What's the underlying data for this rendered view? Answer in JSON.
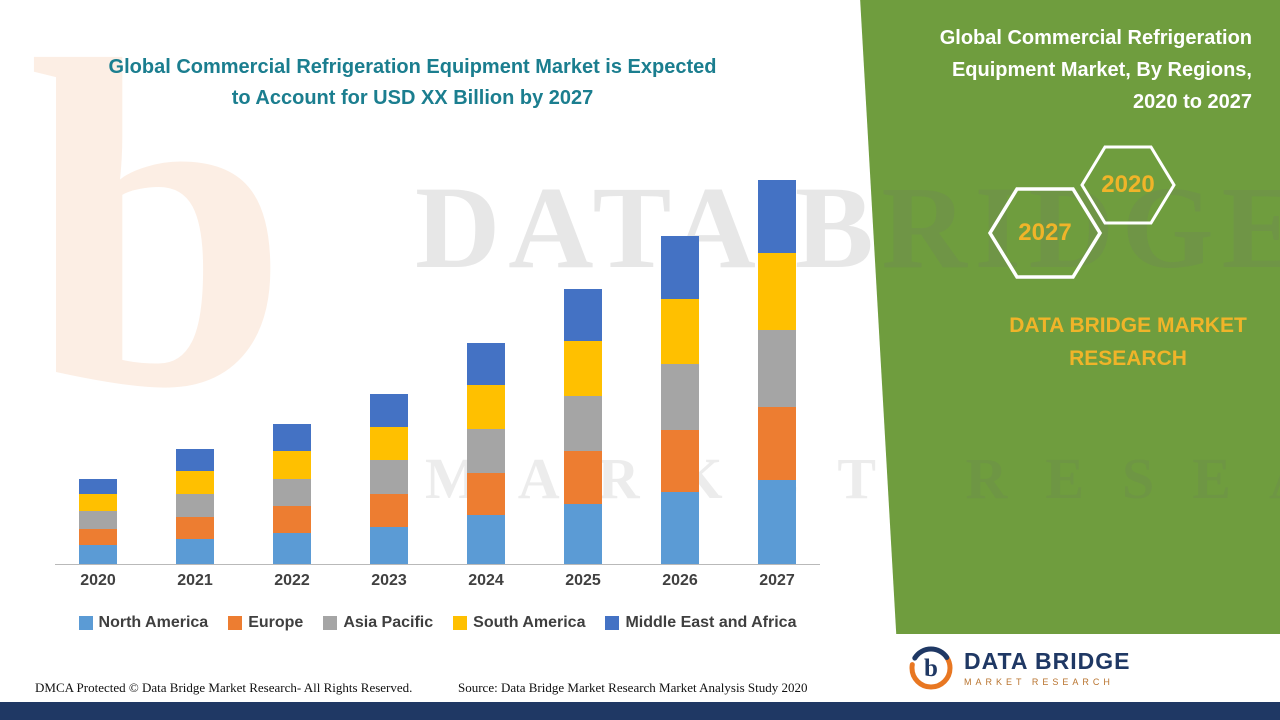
{
  "colors": {
    "green_panel": "#6f9d3e",
    "navy_footer": "#1f3864",
    "teal_title": "#1b7e8f",
    "gold_accent": "#f0b429",
    "axis_text": "#404040"
  },
  "left_panel": {
    "title_lines": [
      "Global Commercial Refrigeration Equipment Market is Expected",
      "to Account for USD XX Billion by 2027"
    ],
    "dmca_note": "DMCA Protected © Data Bridge Market Research- All Rights Reserved.",
    "source_note": "Source: Data Bridge Market Research Market Analysis Study 2020"
  },
  "right_panel": {
    "title_lines": [
      "Global Commercial Refrigeration",
      "Equipment Market, By Regions,",
      "2020 to 2027"
    ],
    "hexagons": {
      "front": "2027",
      "back": "2020"
    },
    "brand_lines": [
      "DATA BRIDGE MARKET",
      "RESEARCH"
    ]
  },
  "footer_logo": {
    "name": "DATA BRIDGE",
    "subtitle": "MARKET RESEARCH"
  },
  "watermark": {
    "letter": "b",
    "line1": "DATA BRIDGE",
    "line2": "MARKET RESEARCH"
  },
  "chart_data": {
    "type": "bar",
    "stacked": true,
    "title": "Global Commercial Refrigeration Equipment Market is Expected to Account for USD XX Billion by 2027",
    "xlabel": "",
    "ylabel": "",
    "y_axis_visible": false,
    "grid": false,
    "legend_position": "bottom",
    "ylim": [
      0,
      42
    ],
    "categories": [
      "2020",
      "2021",
      "2022",
      "2023",
      "2024",
      "2025",
      "2026",
      "2027"
    ],
    "series": [
      {
        "name": "North America",
        "color": "#5b9bd5",
        "values": [
          2.0,
          2.6,
          3.2,
          3.9,
          5.1,
          6.3,
          7.5,
          8.8
        ]
      },
      {
        "name": "Europe",
        "color": "#ed7d31",
        "values": [
          1.7,
          2.3,
          2.8,
          3.4,
          4.4,
          5.5,
          6.5,
          7.6
        ]
      },
      {
        "name": "Asia Pacific",
        "color": "#a5a5a5",
        "values": [
          1.8,
          2.4,
          2.9,
          3.5,
          4.6,
          5.7,
          6.8,
          8.0
        ]
      },
      {
        "name": "South America",
        "color": "#ffc000",
        "values": [
          1.8,
          2.4,
          2.9,
          3.5,
          4.6,
          5.7,
          6.8,
          8.0
        ]
      },
      {
        "name": "Middle East and Africa",
        "color": "#4472c4",
        "values": [
          1.6,
          2.3,
          2.8,
          3.4,
          4.3,
          5.5,
          6.6,
          7.6
        ]
      }
    ],
    "totals_estimated": [
      8.9,
      12.0,
      14.6,
      17.7,
      23.0,
      28.7,
      34.2,
      40.0
    ]
  }
}
